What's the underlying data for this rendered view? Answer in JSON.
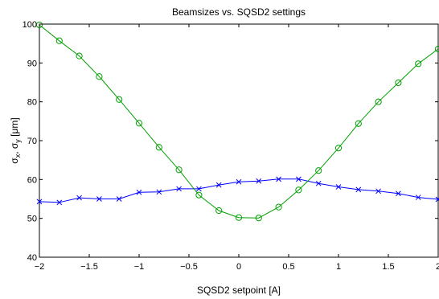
{
  "chart_data": {
    "type": "line",
    "title": "Beamsizes vs. SQSD2 settings",
    "xlabel": "SQSD2 setpoint [A]",
    "ylabel": "σx, σy [μm]",
    "ylabel_parts": {
      "sigma": "σ",
      "x": "x",
      "sep": ", ",
      "y": "y",
      "unit": " [μm]"
    },
    "xlim": [
      -2,
      2
    ],
    "ylim": [
      40,
      100
    ],
    "xticks": [
      -2,
      -1.5,
      -1,
      -0.5,
      0,
      0.5,
      1,
      1.5,
      2
    ],
    "xtick_labels": [
      "−2",
      "−1.5",
      "−1",
      "−0.5",
      "0",
      "0.5",
      "1",
      "1.5",
      "2"
    ],
    "yticks": [
      40,
      50,
      60,
      70,
      80,
      90,
      100
    ],
    "ytick_labels": [
      "40",
      "50",
      "60",
      "70",
      "80",
      "90",
      "100"
    ],
    "grid": false,
    "legend": "none",
    "x": [
      -2,
      -1.8,
      -1.6,
      -1.4,
      -1.2,
      -1,
      -0.8,
      -0.6,
      -0.4,
      -0.2,
      0,
      0.2,
      0.4,
      0.6,
      0.8,
      1,
      1.2,
      1.4,
      1.6,
      1.8,
      2
    ],
    "series": [
      {
        "marker": "x",
        "color": "#0000ff",
        "values": [
          54.3,
          54.1,
          55.3,
          55.0,
          55.0,
          56.7,
          56.8,
          57.6,
          57.6,
          58.6,
          59.4,
          59.6,
          60.1,
          60.1,
          59.0,
          58.1,
          57.4,
          57.0,
          56.4,
          55.4,
          54.9
        ]
      },
      {
        "marker": "o",
        "color": "#00a000",
        "values": [
          99.8,
          95.7,
          91.8,
          86.5,
          80.6,
          74.5,
          68.3,
          62.5,
          56.0,
          52.0,
          50.2,
          50.1,
          52.9,
          57.3,
          62.3,
          68.1,
          74.4,
          80.0,
          84.9,
          89.8,
          93.6
        ]
      }
    ]
  }
}
